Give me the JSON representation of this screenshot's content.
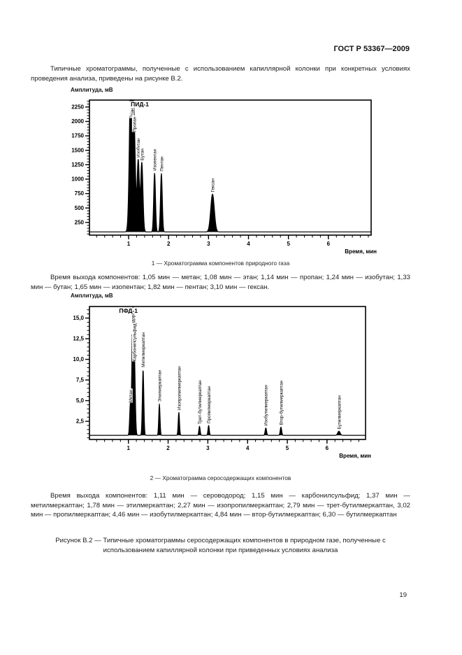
{
  "header": {
    "title": "ГОСТ Р 53367—2009"
  },
  "paragraphs": {
    "intro": "Типичные хроматограммы, полученные с использованием капиллярной колонки при конкретных условиях проведения анализа, приведены на рисунке В.2.",
    "retention1": "Время выхода компонентов: 1,05 мин — метан; 1,08 мин — этан; 1,14 мин — пропан; 1,24 мин — изобутан; 1,33 мин — бутан; 1,65 мин — изопентан; 1,82 мин — пентан; 3,10 мин — гексан.",
    "retention2": "Время выхода компонентов: 1,11 мин — сероводород; 1,15 мин — карбонилсульфид; 1,37 мин — метилмеркаптан; 1,78 мин — этилмеркаптан; 2,27 мин — изопропилмеркаптан; 2,79 мин — трет-бутилмеркаптан, 3,02 мин — пропилмеркаптан; 4,46 мин — изобутилмеркаптан; 4,84 мин — втор-бутилмеркаптан; 6,30 — бутилмеркаптан",
    "figure_caption": "Рисунок В.2 — Типичные хроматограммы серосодержащих компонентов в природном газе, полученные с использованием капиллярной колонки при приведенных условиях анализа"
  },
  "captions": {
    "chart1": "1 — Хроматограмма компонентов природного газа",
    "chart2": "2 — Хроматограмма серосодержащих компонентов"
  },
  "page_number": "19",
  "chart_data": [
    {
      "type": "line",
      "title": "Хроматограмма компонентов природного газа",
      "detector_label": "ПИД-1",
      "detector_label_time": 1.28,
      "ylabel": "Амплитуда, мВ",
      "xlabel": "Время, мин",
      "xlim": [
        0.02,
        7.07
      ],
      "ylim": [
        30,
        2370
      ],
      "baseline_mv": 85,
      "grid": false,
      "line_color": "#000000",
      "x_ticks": [
        1,
        2,
        3,
        4,
        5,
        6
      ],
      "x_minor_step": 0.2,
      "y_minor_step": 50,
      "y_ticks": [
        {
          "v": 250,
          "label": "250"
        },
        {
          "v": 500,
          "label": "500"
        },
        {
          "v": 750,
          "label": "750"
        },
        {
          "v": 1000,
          "label": "1000"
        },
        {
          "v": 1250,
          "label": "1250"
        },
        {
          "v": 1500,
          "label": "1500"
        },
        {
          "v": 1750,
          "label": "1750"
        },
        {
          "v": 2000,
          "label": "2000"
        },
        {
          "v": 2250,
          "label": "2250"
        }
      ],
      "peaks": [
        {
          "name": "Метан",
          "time": 1.05,
          "height_mv": 2100,
          "sigma": 0.035
        },
        {
          "name": "Этан",
          "time": 1.08,
          "height_mv": 2020,
          "sigma": 0.03
        },
        {
          "name": "Пропан",
          "time": 1.14,
          "height_mv": 1780,
          "sigma": 0.03
        },
        {
          "name": "Изобутан",
          "time": 1.24,
          "height_mv": 1340,
          "sigma": 0.028
        },
        {
          "name": "Бутан",
          "time": 1.33,
          "height_mv": 1290,
          "sigma": 0.028
        },
        {
          "name": "Изопентан",
          "time": 1.65,
          "height_mv": 1110,
          "sigma": 0.022
        },
        {
          "name": "Пентан",
          "time": 1.82,
          "height_mv": 1100,
          "sigma": 0.022
        },
        {
          "name": "Гексан",
          "time": 3.1,
          "height_mv": 740,
          "sigma": 0.045
        }
      ]
    },
    {
      "type": "line",
      "title": "Хроматограмма серосодержащих компонентов",
      "detector_label": "ПФД-1",
      "detector_label_time": 1.0,
      "ylabel": "Амплитуда, мВ",
      "xlabel": "Время, мин",
      "xlim": [
        0.02,
        6.97
      ],
      "ylim": [
        0.3,
        16.4
      ],
      "baseline_mv": 0.8,
      "grid": false,
      "line_color": "#000000",
      "x_ticks": [
        1,
        2,
        3,
        4,
        5,
        6
      ],
      "x_minor_step": 0.2,
      "y_minor_step": 0.5,
      "y_ticks": [
        {
          "v": 2.5,
          "label": "2,5"
        },
        {
          "v": 5.0,
          "label": "5,0"
        },
        {
          "v": 7.5,
          "label": "7,5"
        },
        {
          "v": 10.0,
          "label": "10,0"
        },
        {
          "v": 12.5,
          "label": "12,5"
        },
        {
          "v": 15.0,
          "label": "15,0"
        }
      ],
      "peaks": [
        {
          "name": "Метан",
          "time": 1.05,
          "height_mv": 4.5,
          "sigma": 0.018
        },
        {
          "name": "Сероводород",
          "time": 1.11,
          "height_mv": 14.5,
          "sigma": 0.022
        },
        {
          "name": "Карбонилсульфид",
          "time": 1.15,
          "height_mv": 9.5,
          "sigma": 0.022
        },
        {
          "name": "Метилмеркаптан",
          "time": 1.37,
          "height_mv": 8.8,
          "sigma": 0.018
        },
        {
          "name": "Этилмеркаптан",
          "time": 1.78,
          "height_mv": 4.6,
          "sigma": 0.016
        },
        {
          "name": "Изопропилмеркаптан",
          "time": 2.27,
          "height_mv": 3.6,
          "sigma": 0.016
        },
        {
          "name": "Трет-бутилмеркаптан",
          "time": 2.79,
          "height_mv": 1.9,
          "sigma": 0.016
        },
        {
          "name": "Пропилмеркаптан",
          "time": 3.02,
          "height_mv": 2.0,
          "sigma": 0.016
        },
        {
          "name": "Изобутилмеркаптан",
          "time": 4.46,
          "height_mv": 1.7,
          "sigma": 0.018
        },
        {
          "name": "Втор-бутилмеркаптан",
          "time": 4.84,
          "height_mv": 1.8,
          "sigma": 0.018
        },
        {
          "name": "Бутилмеркаптан",
          "time": 6.3,
          "height_mv": 1.3,
          "sigma": 0.03
        }
      ]
    }
  ]
}
